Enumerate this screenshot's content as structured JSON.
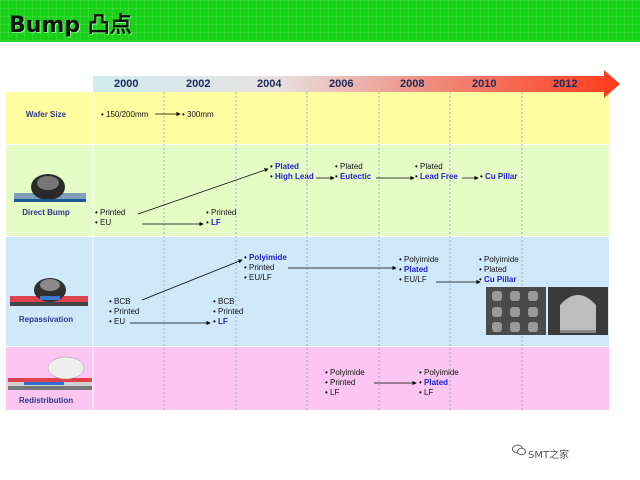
{
  "title": "Bump 凸点",
  "years": [
    "2000",
    "2002",
    "2004",
    "2006",
    "2008",
    "2010",
    "2012"
  ],
  "rows": {
    "wafer": {
      "label": "Wafer Size",
      "items": [
        {
          "text": "150/200mm",
          "color": "black"
        },
        {
          "text": "300mm",
          "color": "black"
        }
      ]
    },
    "direct": {
      "label": "Direct Bump",
      "g2000": [
        "Printed",
        "EU"
      ],
      "g2002": [
        [
          "Printed",
          "black"
        ],
        [
          "LF",
          "blue"
        ]
      ],
      "g2004": [
        [
          "Plated",
          "blue"
        ],
        [
          "High Lead",
          "blue"
        ]
      ],
      "g2006": [
        [
          "Plated",
          "black"
        ],
        [
          "Eutectic",
          "blue"
        ]
      ],
      "g2008": [
        [
          "Plated",
          "black"
        ],
        [
          "Lead Free",
          "blue"
        ]
      ],
      "g2010": [
        [
          "Cu Pillar",
          "blue"
        ]
      ]
    },
    "repass": {
      "label": "Repassivation",
      "g2000": [
        "BCB",
        "Printed",
        "EU"
      ],
      "g2002": [
        [
          "BCB",
          "black"
        ],
        [
          "Printed",
          "black"
        ],
        [
          "LF",
          "blue"
        ]
      ],
      "g2004": [
        [
          "Polyimide",
          "blue"
        ],
        [
          "Printed",
          "black"
        ],
        [
          "EU/LF",
          "black"
        ]
      ],
      "g2008": [
        [
          "Polyimide",
          "black"
        ],
        [
          "Plated",
          "blue"
        ],
        [
          "EU/LF",
          "black"
        ]
      ],
      "g2010": [
        [
          "Polyimide",
          "black"
        ],
        [
          "Plated",
          "black"
        ],
        [
          "Cu Pillar",
          "blue"
        ]
      ]
    },
    "redist": {
      "label": "Redistribution",
      "g2006": [
        [
          "Polyimide",
          "black"
        ],
        [
          "Printed",
          "black"
        ],
        [
          "LF",
          "black"
        ]
      ],
      "g2008": [
        [
          "Polyimide",
          "black"
        ],
        [
          "Plated",
          "blue"
        ],
        [
          "LF",
          "black"
        ]
      ]
    }
  },
  "watermark": "SMT之家",
  "colors": {
    "title_bar": "#19d119",
    "row_wafer": "#fffea0",
    "row_direct": "#e6fcc6",
    "row_repass": "#cfe9fb",
    "row_redist": "#fbc6f1",
    "arrow_start": "#d9eef2",
    "arrow_end": "#ff3a1a",
    "blue_text": "#2020d0"
  }
}
